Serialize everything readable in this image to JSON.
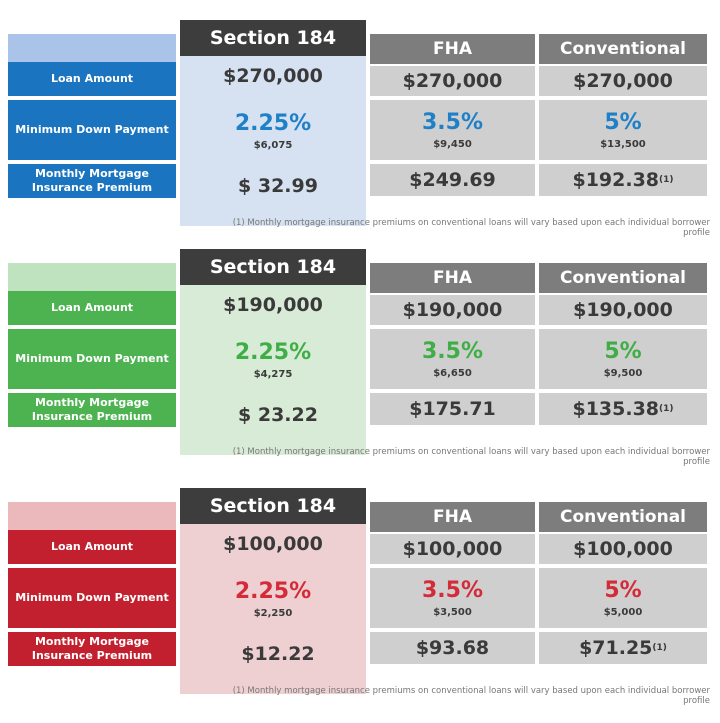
{
  "tables": [
    {
      "theme": {
        "accent": "#1a74bf",
        "label_bg": "#1a74bf",
        "header_blank": "#a9c4e8",
        "s184_bg": "#d6e2f2",
        "pct_color": "#1f80c8"
      },
      "s184_header": "Section 184",
      "fha_header": "FHA",
      "conv_header": "Conventional",
      "labels": {
        "loan": "Loan Amount",
        "down": "Minimum Down Payment",
        "mip_line1": "Monthly Mortgage",
        "mip_line2": "Insurance Premium"
      },
      "s184": {
        "loan": "$270,000",
        "down_pct": "2.25%",
        "down_amt": "$6,075",
        "mip": "$ 32.99"
      },
      "fha": {
        "loan": "$270,000",
        "down_pct": "3.5%",
        "down_amt": "$9,450",
        "mip": "$249.69"
      },
      "conv": {
        "loan": "$270,000",
        "down_pct": "5%",
        "down_amt": "$13,500",
        "mip": "$192.38",
        "mip_note": "(1)"
      },
      "footnote": "(1) Monthly mortgage insurance premiums on conventional loans will vary based upon each individual borrower profile"
    },
    {
      "theme": {
        "accent": "#4db351",
        "label_bg": "#4db351",
        "header_blank": "#bfe3bf",
        "s184_bg": "#d8ebd6",
        "pct_color": "#3fae46"
      },
      "s184_header": "Section 184",
      "fha_header": "FHA",
      "conv_header": "Conventional",
      "labels": {
        "loan": "Loan Amount",
        "down": "Minimum Down Payment",
        "mip_line1": "Monthly Mortgage",
        "mip_line2": "Insurance Premium"
      },
      "s184": {
        "loan": "$190,000",
        "down_pct": "2.25%",
        "down_amt": "$4,275",
        "mip": "$ 23.22"
      },
      "fha": {
        "loan": "$190,000",
        "down_pct": "3.5%",
        "down_amt": "$6,650",
        "mip": "$175.71"
      },
      "conv": {
        "loan": "$190,000",
        "down_pct": "5%",
        "down_amt": "$9,500",
        "mip": "$135.38",
        "mip_note": "(1)"
      },
      "footnote": "(1) Monthly mortgage insurance premiums on conventional loans will vary based upon each individual borrower profile"
    },
    {
      "theme": {
        "accent": "#c2202f",
        "label_bg": "#c2202f",
        "header_blank": "#ebb9bc",
        "s184_bg": "#eed0d2",
        "pct_color": "#d42b38"
      },
      "s184_header": "Section 184",
      "fha_header": "FHA",
      "conv_header": "Conventional",
      "labels": {
        "loan": "Loan Amount",
        "down": "Minimum Down Payment",
        "mip_line1": "Monthly Mortgage",
        "mip_line2": "Insurance Premium"
      },
      "s184": {
        "loan": "$100,000",
        "down_pct": "2.25%",
        "down_amt": "$2,250",
        "mip": "$12.22"
      },
      "fha": {
        "loan": "$100,000",
        "down_pct": "3.5%",
        "down_amt": "$3,500",
        "mip": "$93.68"
      },
      "conv": {
        "loan": "$100,000",
        "down_pct": "5%",
        "down_amt": "$5,000",
        "mip": "$71.25",
        "mip_note": "(1)"
      },
      "footnote": "(1) Monthly mortgage insurance premiums on conventional loans will vary based upon each individual borrower profile"
    }
  ]
}
